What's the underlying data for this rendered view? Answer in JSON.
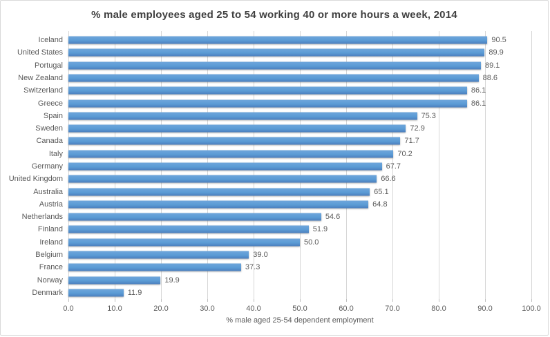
{
  "chart_data": {
    "type": "bar",
    "orientation": "horizontal",
    "title": "% male employees aged 25 to 54 working 40 or more hours a week, 2014",
    "xlabel": "% male aged 25-54 dependent employment",
    "ylabel": "",
    "xlim": [
      0,
      100
    ],
    "grid": true,
    "legend": false,
    "categories": [
      "Iceland",
      "United States",
      "Portugal",
      "New Zealand",
      "Switzerland",
      "Greece",
      "Spain",
      "Sweden",
      "Canada",
      "Italy",
      "Germany",
      "United Kingdom",
      "Australia",
      "Austria",
      "Netherlands",
      "Finland",
      "Ireland",
      "Belgium",
      "France",
      "Norway",
      "Denmark"
    ],
    "values": [
      90.5,
      89.9,
      89.1,
      88.6,
      86.1,
      86.1,
      75.3,
      72.9,
      71.7,
      70.2,
      67.7,
      66.6,
      65.1,
      64.8,
      54.6,
      51.9,
      50.0,
      39.0,
      37.3,
      19.9,
      11.9
    ],
    "value_labels": [
      "90.5",
      "89.9",
      "89.1",
      "88.6",
      "86.1",
      "86.1",
      "75.3",
      "72.9",
      "71.7",
      "70.2",
      "67.7",
      "66.6",
      "65.1",
      "64.8",
      "54.6",
      "51.9",
      "50.0",
      "39.0",
      "37.3",
      "19.9",
      "11.9"
    ],
    "xticks": [
      "0.0",
      "10.0",
      "20.0",
      "30.0",
      "40.0",
      "50.0",
      "60.0",
      "70.0",
      "80.0",
      "90.0",
      "100.0"
    ],
    "colors": {
      "bar": "#5b9bd5",
      "gridline": "#d6d6d6",
      "tick_mark": "#bfbfbf",
      "axis_text": "#595959",
      "title_text": "#3f3f3f",
      "chart_border": "#d9d9d9",
      "background": "#ffffff"
    }
  }
}
